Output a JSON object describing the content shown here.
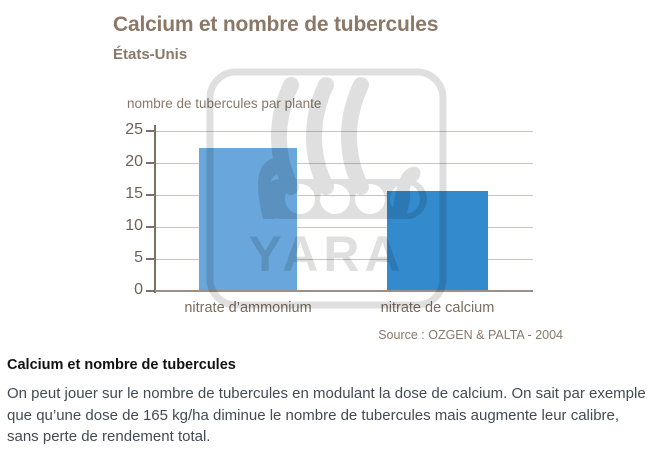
{
  "chart_data": {
    "type": "bar",
    "title": "Calcium et nombre de tubercules",
    "subtitle": "États-Unis",
    "ylabel": "nombre de tubercules par plante",
    "categories": [
      "nitrate d’ammonium",
      "nitrate de calcium"
    ],
    "values": [
      22.3,
      15.7
    ],
    "bar_colors": [
      "#69a6db",
      "#338acc"
    ],
    "yticks": [
      0,
      5,
      10,
      15,
      20,
      25
    ],
    "ylim": [
      0,
      25
    ],
    "grid": true,
    "legend": "none",
    "source": "Source : OZGEN & PALTA - 2004"
  },
  "watermark": {
    "label": "YARA"
  },
  "article": {
    "heading": "Calcium et nombre de tubercules",
    "paragraph": "On peut jouer sur le nombre de tubercules en modulant la dose de calcium. On sait par exemple que qu’une dose de 165 kg/ha diminue le nombre de tubercules mais augmente leur calibre, sans perte de rendement total."
  }
}
